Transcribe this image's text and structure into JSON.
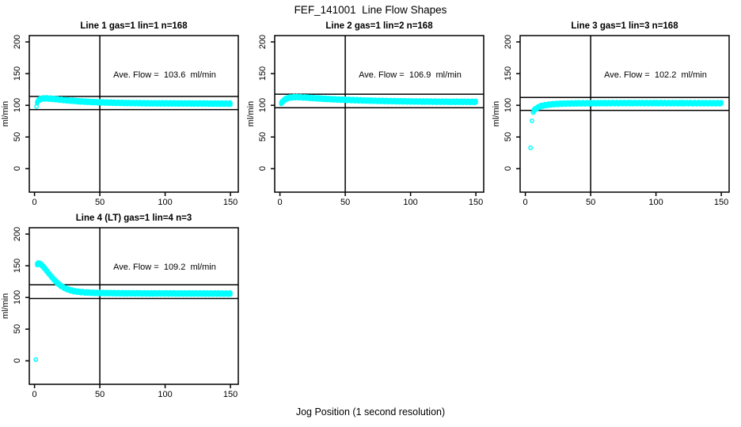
{
  "page": {
    "background": "#ffffff"
  },
  "chart_data": {
    "type": "scatter",
    "title": "FEF_141001  Line Flow Shapes",
    "xlabel": "Jog Position (1 second resolution)",
    "ylabel": "ml/min",
    "marker_color": "#00ffff",
    "axis_color": "#000000",
    "grid": false,
    "legend": "none",
    "xlim": [
      -4,
      156
    ],
    "ylim": [
      -37,
      210
    ],
    "x_ticks": [
      0,
      50,
      100,
      150
    ],
    "y_ticks": [
      0,
      50,
      100,
      150,
      200
    ],
    "vline_x": 50,
    "marker_band_halfwidth": 1.5,
    "plots": [
      {
        "line": 1,
        "title": "Line 1 gas=1 lin=1 n=168",
        "gas": 1,
        "lin": 1,
        "n": 168,
        "ave_flow": 103.6,
        "ave_flow_text": "Ave. Flow =  103.6  ml/min",
        "ref_lines": [
          114.0,
          93.2
        ],
        "trend": [
          [
            2,
            104.5
          ],
          [
            3,
            107.5
          ],
          [
            4,
            109.3
          ],
          [
            5,
            110.3
          ],
          [
            7,
            111
          ],
          [
            10,
            110.8
          ],
          [
            13,
            110.4
          ],
          [
            16,
            109.8
          ],
          [
            20,
            108.8
          ],
          [
            25,
            107.8
          ],
          [
            30,
            107
          ],
          [
            35,
            106.2
          ],
          [
            40,
            105.6
          ],
          [
            45,
            105.1
          ],
          [
            50,
            104.7
          ],
          [
            60,
            104.1
          ],
          [
            70,
            103.7
          ],
          [
            80,
            103.4
          ],
          [
            90,
            103.2
          ],
          [
            100,
            103.1
          ],
          [
            110,
            103
          ],
          [
            120,
            102.9
          ],
          [
            130,
            102.8
          ],
          [
            140,
            102.7
          ],
          [
            150,
            102.6
          ]
        ],
        "outliers": [
          [
            1.5,
            98
          ]
        ]
      },
      {
        "line": 2,
        "title": "Line 2 gas=1 lin=2 n=168",
        "gas": 1,
        "lin": 2,
        "n": 168,
        "ave_flow": 106.9,
        "ave_flow_text": "Ave. Flow =  106.9  ml/min",
        "ref_lines": [
          117.6,
          96.2
        ],
        "trend": [
          [
            1,
            103.5
          ],
          [
            2,
            105.8
          ],
          [
            3,
            107.8
          ],
          [
            4,
            109.4
          ],
          [
            5,
            110.6
          ],
          [
            7,
            111.9
          ],
          [
            9,
            112.6
          ],
          [
            12,
            113
          ],
          [
            15,
            112.8
          ],
          [
            20,
            112.2
          ],
          [
            25,
            111.5
          ],
          [
            30,
            110.8
          ],
          [
            35,
            110.2
          ],
          [
            40,
            109.6
          ],
          [
            45,
            109.1
          ],
          [
            50,
            108.7
          ],
          [
            60,
            107.9
          ],
          [
            70,
            107.3
          ],
          [
            80,
            106.8
          ],
          [
            90,
            106.4
          ],
          [
            100,
            106.1
          ],
          [
            110,
            105.9
          ],
          [
            120,
            105.7
          ],
          [
            130,
            105.6
          ],
          [
            140,
            105.5
          ],
          [
            150,
            105.4
          ]
        ],
        "outliers": []
      },
      {
        "line": 3,
        "title": "Line 3 gas=1 lin=3 n=168",
        "gas": 1,
        "lin": 3,
        "n": 168,
        "ave_flow": 102.2,
        "ave_flow_text": "Ave. Flow =  102.2  ml/min",
        "ref_lines": [
          112.4,
          92.0
        ],
        "trend": [
          [
            6.5,
            92
          ],
          [
            8,
            94.5
          ],
          [
            10,
            97
          ],
          [
            12,
            98.8
          ],
          [
            15,
            100.2
          ],
          [
            18,
            101.1
          ],
          [
            22,
            101.9
          ],
          [
            26,
            102.4
          ],
          [
            30,
            102.7
          ],
          [
            40,
            103.1
          ],
          [
            50,
            103.3
          ],
          [
            60,
            103.4
          ],
          [
            80,
            103.5
          ],
          [
            100,
            103.5
          ],
          [
            120,
            103.4
          ],
          [
            150,
            103.3
          ]
        ],
        "outliers": [
          [
            4,
            33
          ],
          [
            5,
            75.5
          ],
          [
            6,
            88.5
          ]
        ]
      },
      {
        "line": 4,
        "title": "Line 4 (LT) gas=1 lin=4 n=3",
        "gas": 1,
        "lin": 4,
        "n": 3,
        "ave_flow": 109.2,
        "ave_flow_text": "Ave. Flow =  109.2  ml/min",
        "ref_lines": [
          120.1,
          98.3
        ],
        "trend": [
          [
            2,
            152.5
          ],
          [
            3,
            153.8
          ],
          [
            4,
            153.3
          ],
          [
            5,
            152
          ],
          [
            6,
            150
          ],
          [
            7,
            147.8
          ],
          [
            8,
            145.3
          ],
          [
            9,
            142.8
          ],
          [
            10,
            140.2
          ],
          [
            11,
            137.7
          ],
          [
            12,
            135.2
          ],
          [
            13,
            132.7
          ],
          [
            14,
            130.3
          ],
          [
            15,
            128
          ],
          [
            16,
            125.9
          ],
          [
            17,
            123.9
          ],
          [
            18,
            122
          ],
          [
            19,
            120.3
          ],
          [
            20,
            118.7
          ],
          [
            22,
            116.1
          ],
          [
            24,
            114
          ],
          [
            26,
            112.4
          ],
          [
            28,
            111.1
          ],
          [
            30,
            110.1
          ],
          [
            33,
            109.1
          ],
          [
            36,
            108.4
          ],
          [
            40,
            107.8
          ],
          [
            45,
            107.4
          ],
          [
            50,
            107.1
          ],
          [
            60,
            106.8
          ],
          [
            70,
            106.6
          ],
          [
            80,
            106.5
          ],
          [
            90,
            106.4
          ],
          [
            100,
            106.4
          ],
          [
            110,
            106.3
          ],
          [
            120,
            106.3
          ],
          [
            130,
            106.2
          ],
          [
            140,
            106.2
          ],
          [
            150,
            106.1
          ]
        ],
        "outliers": [
          [
            1,
            2
          ]
        ]
      }
    ]
  }
}
